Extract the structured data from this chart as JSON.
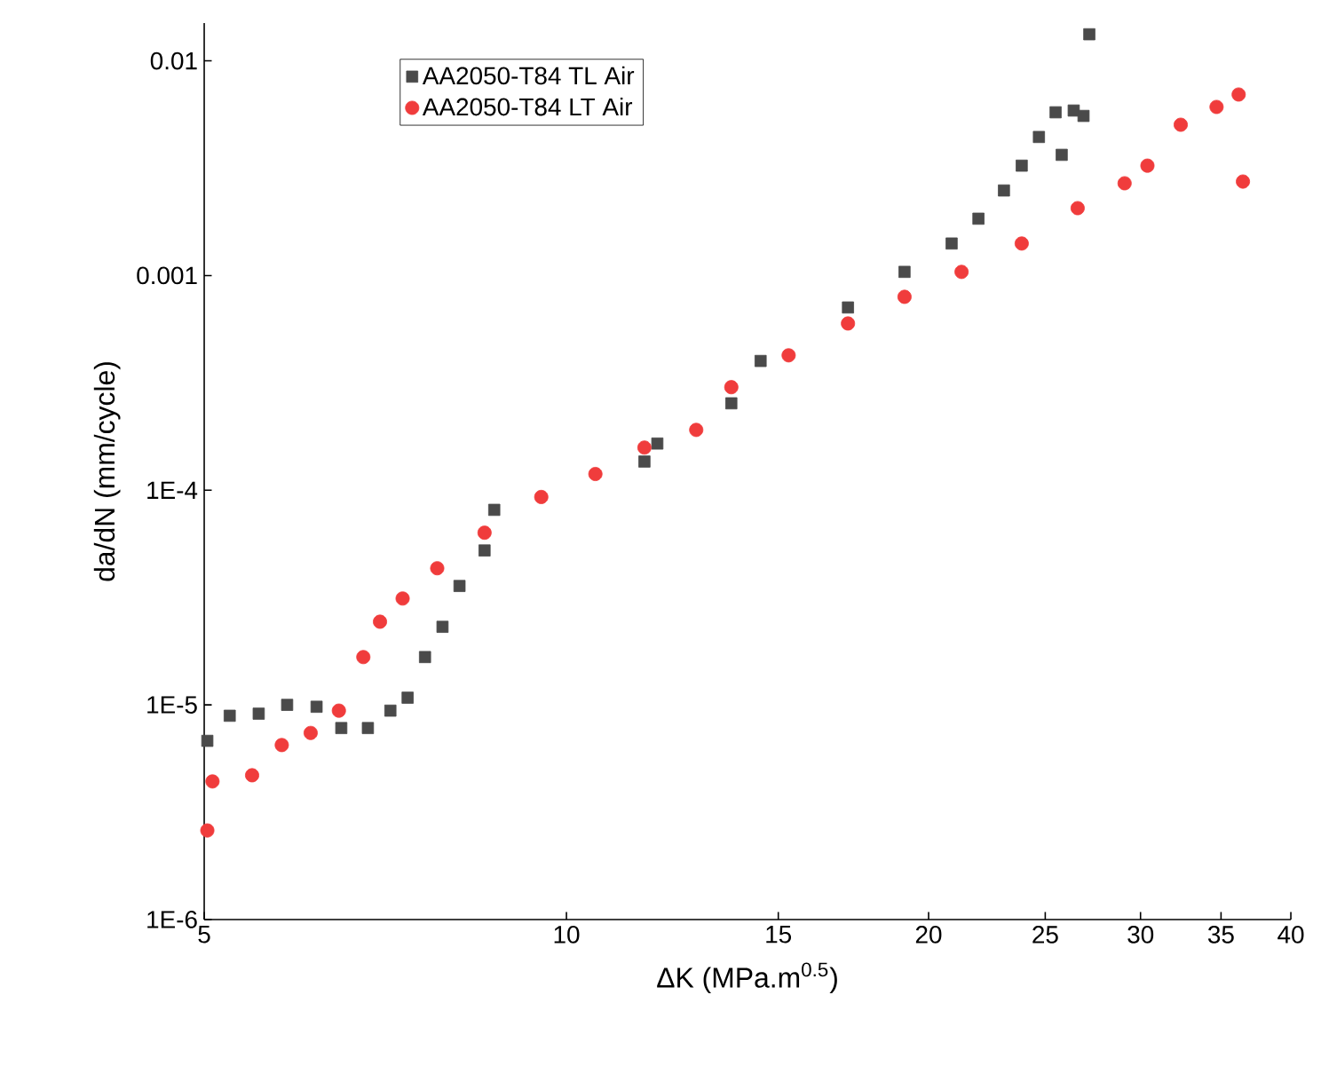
{
  "chart_data": {
    "type": "scatter",
    "xlabel": "ΔK (MPa.m$^{0.5}$)",
    "ylabel": "da/dN (mm/cycle)",
    "log": "xy",
    "xlim": [
      5,
      40
    ],
    "ylim": [
      1e-06,
      0.015
    ],
    "xticks": [
      5,
      10,
      15,
      20,
      25,
      30,
      35,
      40
    ],
    "yticks": [
      {
        "value": 1e-06,
        "label": "1E-6"
      },
      {
        "value": 1e-05,
        "label": "1E-5"
      },
      {
        "value": 0.0001,
        "label": "1E-4"
      },
      0.001,
      0.01
    ],
    "legend": "top left",
    "grid": false,
    "series": [
      {
        "name": "AA2050-T84 TL Air",
        "color": "#4a4a4a",
        "marker": "square",
        "x": [
          5.03,
          5.25,
          5.55,
          5.86,
          6.2,
          6.5,
          6.84,
          7.14,
          7.38,
          7.63,
          7.89,
          8.15,
          8.55,
          8.71,
          11.61,
          11.9,
          13.71,
          14.5,
          17.14,
          19.1,
          20.9,
          22.0,
          23.1,
          23.9,
          24.7,
          25.5,
          26.4,
          26.9,
          25.8,
          27.2
        ],
        "values": [
          6.8e-06,
          8.9e-06,
          9.1e-06,
          1e-05,
          9.8e-06,
          7.8e-06,
          7.8e-06,
          9.4e-06,
          1.08e-05,
          1.67e-05,
          2.31e-05,
          3.58e-05,
          5.24e-05,
          8.1e-05,
          0.000136,
          0.000165,
          0.000254,
          0.0004,
          0.00071,
          0.00104,
          0.00141,
          0.00184,
          0.00249,
          0.00325,
          0.00442,
          0.00576,
          0.00587,
          0.00554,
          0.00365,
          0.0133
        ]
      },
      {
        "name": "AA2050-T84 LT Air",
        "color": "#f03c3c",
        "marker": "circle",
        "x": [
          5.03,
          5.08,
          5.48,
          5.8,
          6.13,
          6.47,
          6.78,
          7.0,
          7.31,
          7.81,
          8.55,
          9.53,
          10.57,
          11.61,
          12.82,
          13.71,
          15.3,
          17.14,
          19.1,
          21.3,
          23.9,
          26.6,
          29.1,
          30.4,
          32.4,
          34.7,
          36.2,
          36.5
        ],
        "values": [
          2.6e-06,
          4.4e-06,
          4.7e-06,
          6.5e-06,
          7.4e-06,
          9.4e-06,
          1.67e-05,
          2.44e-05,
          3.13e-05,
          4.33e-05,
          6.34e-05,
          9.3e-05,
          0.000119,
          0.000158,
          0.000191,
          0.000302,
          0.000425,
          0.000598,
          0.000796,
          0.00104,
          0.00141,
          0.00206,
          0.00269,
          0.00325,
          0.00504,
          0.0061,
          0.00697,
          0.00274
        ]
      }
    ]
  }
}
